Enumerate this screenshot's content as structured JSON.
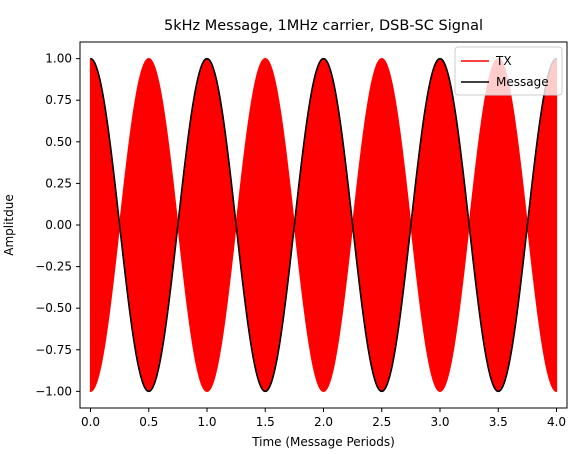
{
  "chart_data": {
    "type": "line",
    "title": "5kHz Message, 1MHz carrier, DSB-SC Signal",
    "xlabel": "Time (Message Periods)",
    "ylabel": "Amplitdue",
    "xlim": [
      -0.09,
      4.09
    ],
    "ylim": [
      -1.1,
      1.1
    ],
    "xticks": [
      0.0,
      0.5,
      1.0,
      1.5,
      2.0,
      2.5,
      3.0,
      3.5,
      4.0
    ],
    "xtick_labels": [
      "0.0",
      "0.5",
      "1.0",
      "1.5",
      "2.0",
      "2.5",
      "3.0",
      "3.5",
      "4.0"
    ],
    "yticks": [
      1.0,
      0.75,
      0.5,
      0.25,
      0.0,
      -0.25,
      -0.5,
      -0.75,
      -1.0
    ],
    "ytick_labels": [
      "1.00",
      "0.75",
      "0.50",
      "0.25",
      "0.00",
      "−0.25",
      "−0.50",
      "−0.75",
      "−1.00"
    ],
    "grid": false,
    "legend_placement": "top-right",
    "series": [
      {
        "name": "TX",
        "color": "#ff0000",
        "description_of_shape": "DSB-SC: message times 1MHz carrier; envelope is |cos(2*pi*t)|, filled by dense carrier oscillation",
        "x_range": [
          0,
          4
        ],
        "envelope": "abs-cos"
      },
      {
        "name": "Message",
        "color": "#000000",
        "x_range": [
          0,
          4
        ],
        "function": "cos(2*pi*t)",
        "x": [
          0.0,
          0.25,
          0.5,
          0.75,
          1.0,
          1.25,
          1.5,
          1.75,
          2.0,
          2.25,
          2.5,
          2.75,
          3.0,
          3.25,
          3.5,
          3.75,
          4.0
        ],
        "y": [
          1.0,
          0.0,
          -1.0,
          0.0,
          1.0,
          0.0,
          -1.0,
          0.0,
          1.0,
          0.0,
          -1.0,
          0.0,
          1.0,
          0.0,
          -1.0,
          0.0,
          1.0
        ]
      }
    ]
  }
}
